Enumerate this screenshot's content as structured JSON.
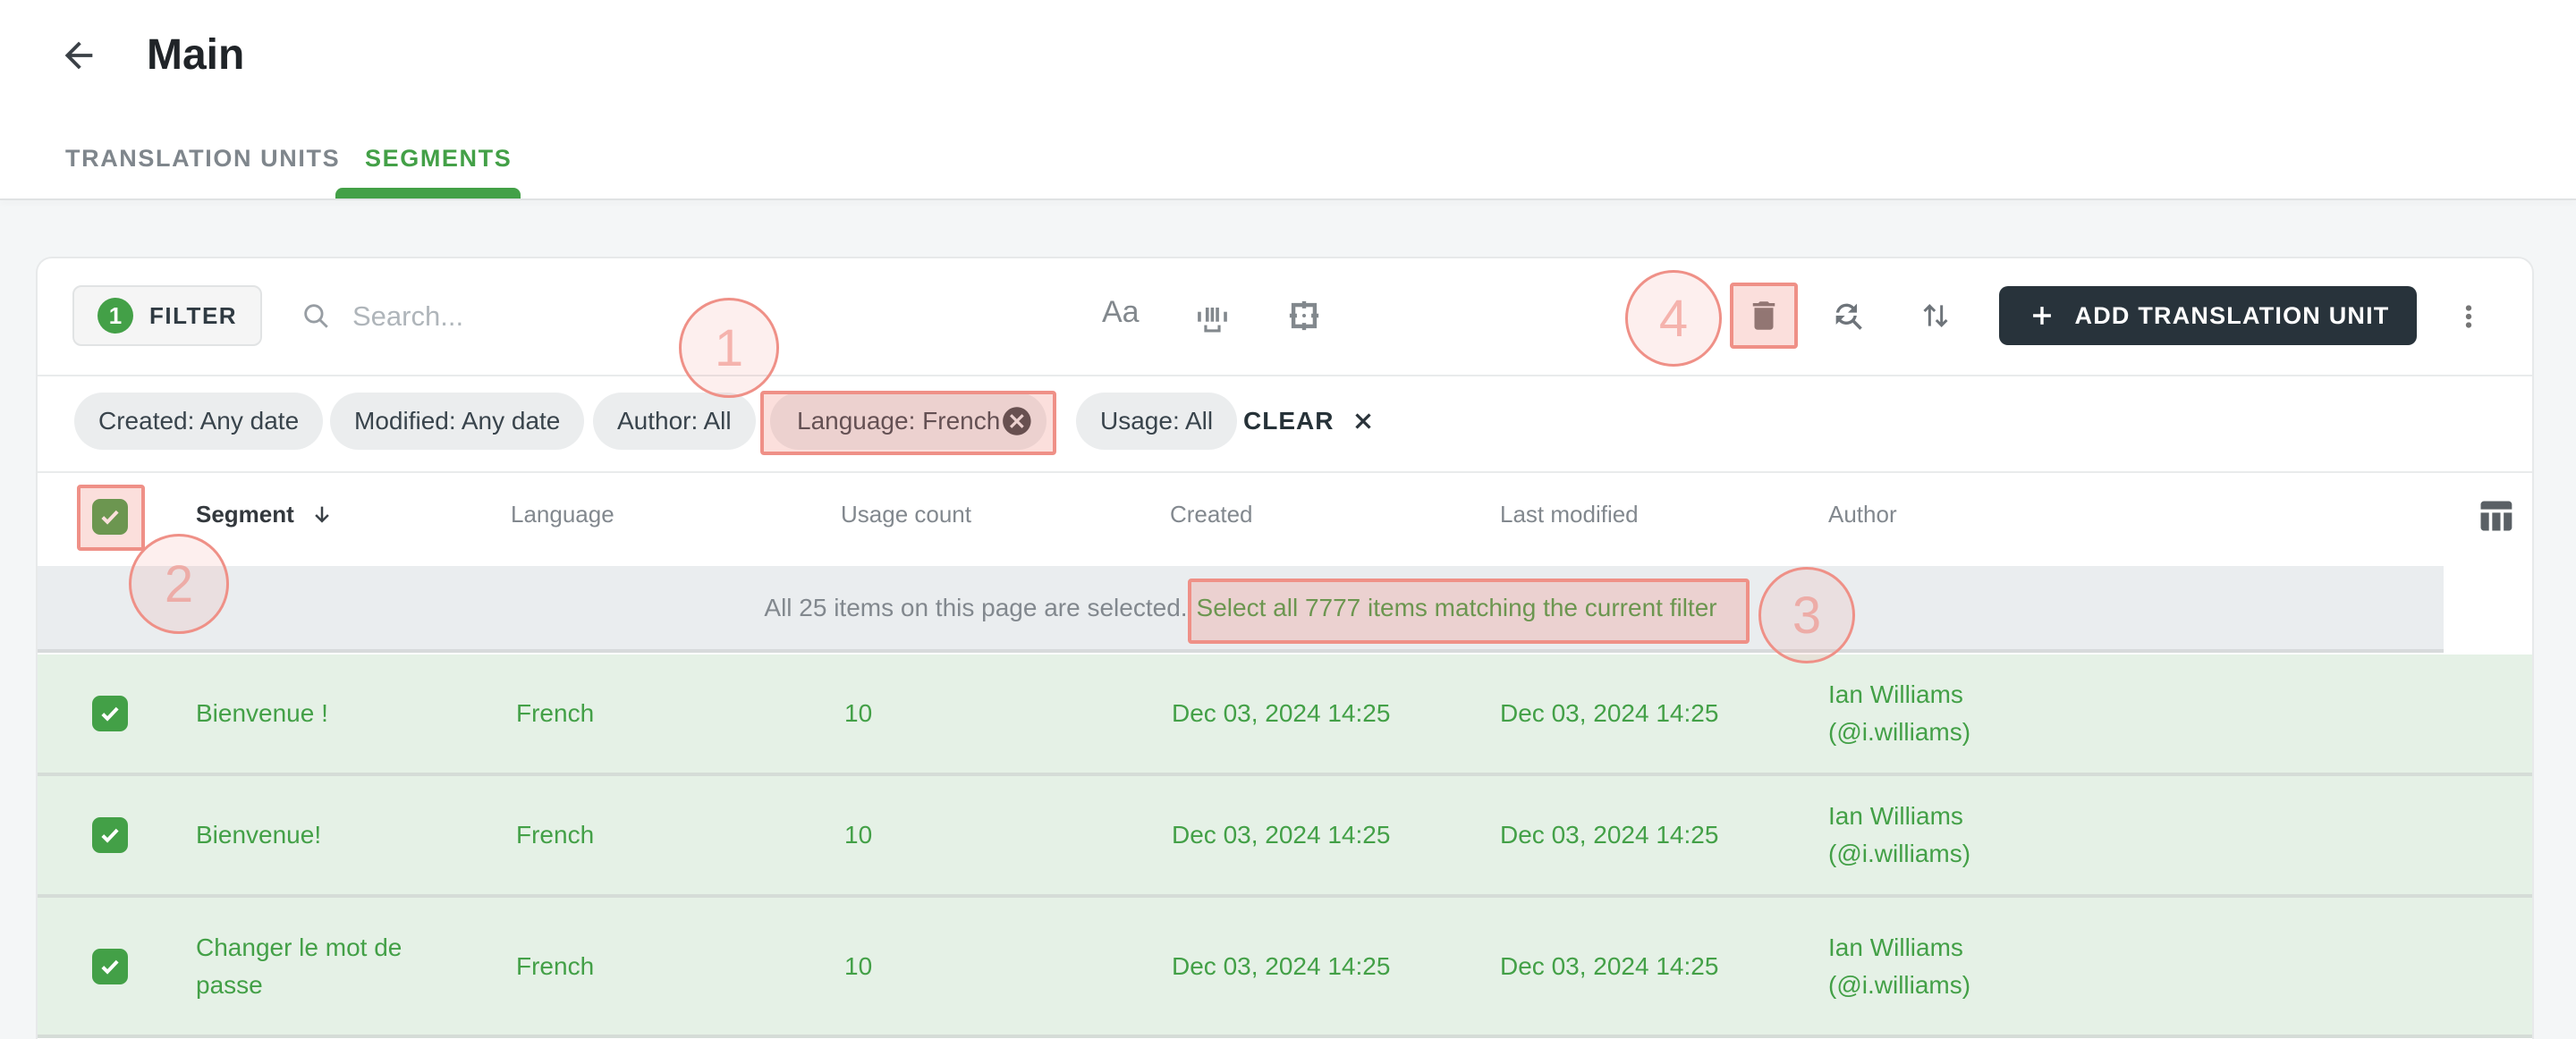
{
  "header": {
    "title": "Main"
  },
  "tabs": [
    {
      "label": "TRANSLATION UNITS",
      "active": false
    },
    {
      "label": "SEGMENTS",
      "active": true
    }
  ],
  "toolbar": {
    "filter_badge": "1",
    "filter_label": "FILTER",
    "search_placeholder": "Search...",
    "match_case_label": "Aa",
    "add_button_label": "ADD TRANSLATION UNIT"
  },
  "filter_chips": [
    {
      "label": "Created: Any date",
      "removable": false,
      "highlighted": false
    },
    {
      "label": "Modified: Any date",
      "removable": false,
      "highlighted": false
    },
    {
      "label": "Author: All",
      "removable": false,
      "highlighted": false
    },
    {
      "label": "Language: French",
      "removable": true,
      "highlighted": true
    },
    {
      "label": "Usage: All",
      "removable": false,
      "highlighted": false
    }
  ],
  "clear_button_label": "CLEAR",
  "table": {
    "columns": [
      {
        "label": "Segment",
        "sorted": "desc"
      },
      {
        "label": "Language",
        "sorted": null
      },
      {
        "label": "Usage count",
        "sorted": null
      },
      {
        "label": "Created",
        "sorted": null
      },
      {
        "label": "Last modified",
        "sorted": null
      },
      {
        "label": "Author",
        "sorted": null
      }
    ],
    "selection_banner": {
      "text": "All 25 items on this page are selected.",
      "link_text": "Select all 7777 items matching the current filter"
    },
    "rows": [
      {
        "selected": true,
        "segment": "Bienvenue !",
        "language": "French",
        "usage_count": "10",
        "created": "Dec 03, 2024 14:25",
        "last_modified": "Dec 03, 2024 14:25",
        "author_name": "Ian Williams",
        "author_handle": "(@i.williams)"
      },
      {
        "selected": true,
        "segment": "Bienvenue!",
        "language": "French",
        "usage_count": "10",
        "created": "Dec 03, 2024 14:25",
        "last_modified": "Dec 03, 2024 14:25",
        "author_name": "Ian Williams",
        "author_handle": "(@i.williams)"
      },
      {
        "selected": true,
        "segment": "Changer le mot de passe",
        "language": "French",
        "usage_count": "10",
        "created": "Dec 03, 2024 14:25",
        "last_modified": "Dec 03, 2024 14:25",
        "author_name": "Ian Williams",
        "author_handle": "(@i.williams)"
      }
    ]
  },
  "annotations": [
    {
      "number": "1"
    },
    {
      "number": "2"
    },
    {
      "number": "3"
    },
    {
      "number": "4"
    }
  ],
  "colors": {
    "accent_green": "#43A047",
    "selected_row_bg": "#E5F1E6",
    "banner_bg": "#EAEDEF",
    "dark_button_bg": "#28333B",
    "annotation_red": "#EF9087"
  }
}
